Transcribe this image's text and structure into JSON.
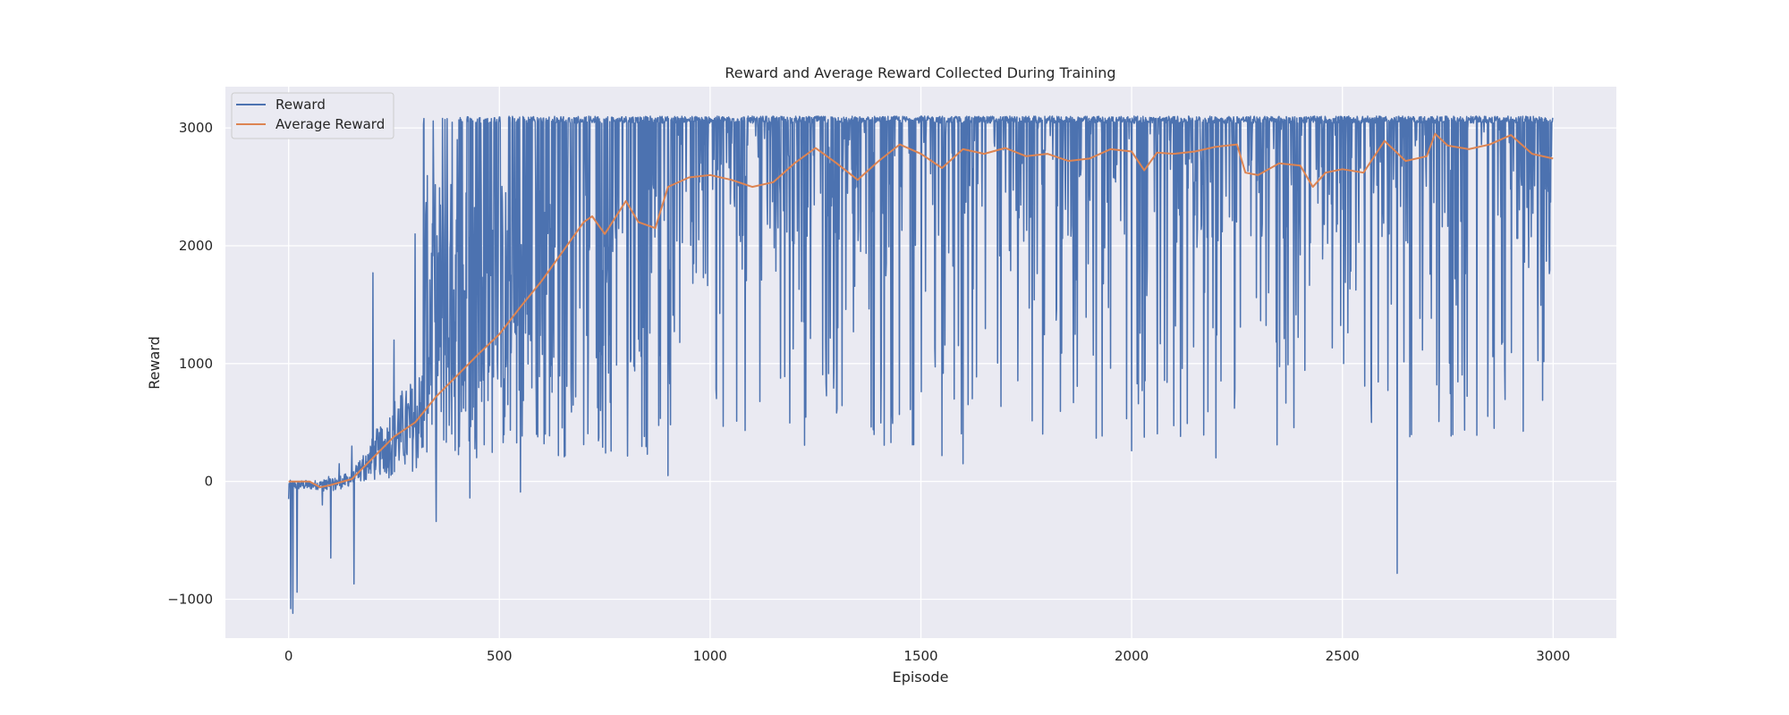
{
  "chart_data": {
    "type": "line",
    "title": "Reward and Average Reward Collected During Training",
    "xlabel": "Episode",
    "ylabel": "Reward",
    "xlim": [
      -150,
      3150
    ],
    "ylim": [
      -1330,
      3350
    ],
    "x_ticks": [
      0,
      500,
      1000,
      1500,
      2000,
      2500,
      3000
    ],
    "x_tick_labels": [
      "0",
      "500",
      "1000",
      "1500",
      "2000",
      "2500",
      "3000"
    ],
    "y_ticks": [
      -1000,
      0,
      1000,
      2000,
      3000
    ],
    "y_tick_labels": [
      "−1000",
      "0",
      "1000",
      "2000",
      "3000"
    ],
    "grid": true,
    "legend_position": "upper-left",
    "episodes": 3000,
    "series": [
      {
        "name": "Reward",
        "color": "#4c72b0",
        "description_points": [
          [
            0,
            -150
          ],
          [
            5,
            -1080
          ],
          [
            10,
            -1120
          ],
          [
            20,
            -940
          ],
          [
            30,
            0
          ],
          [
            60,
            -20
          ],
          [
            80,
            -200
          ],
          [
            100,
            -650
          ],
          [
            120,
            150
          ],
          [
            150,
            300
          ],
          [
            155,
            -870
          ],
          [
            200,
            1770
          ],
          [
            250,
            1200
          ],
          [
            300,
            2100
          ],
          [
            320,
            3030
          ],
          [
            350,
            -340
          ],
          [
            400,
            2900
          ],
          [
            430,
            -140
          ],
          [
            470,
            2900
          ],
          [
            540,
            3050
          ],
          [
            550,
            -90
          ],
          [
            600,
            3050
          ],
          [
            900,
            50
          ],
          [
            1000,
            3080
          ],
          [
            1250,
            3090
          ],
          [
            1500,
            3100
          ],
          [
            1550,
            220
          ],
          [
            1600,
            150
          ],
          [
            1800,
            3080
          ],
          [
            2000,
            260
          ],
          [
            2200,
            200
          ],
          [
            2600,
            3080
          ],
          [
            2630,
            -780
          ],
          [
            2660,
            380
          ],
          [
            2860,
            450
          ],
          [
            3000,
            680
          ]
        ],
        "upper_envelope": 3070,
        "lower_band_after_1000": [
          300,
          1500
        ]
      },
      {
        "name": "Average Reward",
        "color": "#dd8452",
        "x": [
          0,
          50,
          75,
          100,
          150,
          200,
          250,
          300,
          350,
          400,
          450,
          500,
          550,
          600,
          650,
          700,
          720,
          750,
          800,
          830,
          870,
          900,
          950,
          1000,
          1050,
          1100,
          1150,
          1200,
          1250,
          1300,
          1350,
          1400,
          1450,
          1500,
          1550,
          1600,
          1650,
          1700,
          1750,
          1800,
          1850,
          1900,
          1950,
          2000,
          2030,
          2060,
          2100,
          2150,
          2200,
          2250,
          2270,
          2300,
          2350,
          2400,
          2430,
          2460,
          2500,
          2550,
          2600,
          2650,
          2700,
          2720,
          2750,
          2800,
          2850,
          2900,
          2950,
          3000
        ],
        "y": [
          0,
          0,
          -50,
          -30,
          20,
          200,
          380,
          500,
          720,
          900,
          1080,
          1250,
          1480,
          1700,
          1950,
          2200,
          2250,
          2100,
          2380,
          2200,
          2150,
          2500,
          2580,
          2600,
          2560,
          2500,
          2540,
          2700,
          2830,
          2700,
          2560,
          2720,
          2860,
          2780,
          2660,
          2820,
          2780,
          2830,
          2760,
          2780,
          2720,
          2740,
          2820,
          2800,
          2640,
          2790,
          2780,
          2800,
          2840,
          2860,
          2620,
          2600,
          2700,
          2680,
          2500,
          2620,
          2650,
          2620,
          2890,
          2720,
          2760,
          2950,
          2850,
          2820,
          2860,
          2940,
          2780,
          2740
        ]
      }
    ]
  }
}
